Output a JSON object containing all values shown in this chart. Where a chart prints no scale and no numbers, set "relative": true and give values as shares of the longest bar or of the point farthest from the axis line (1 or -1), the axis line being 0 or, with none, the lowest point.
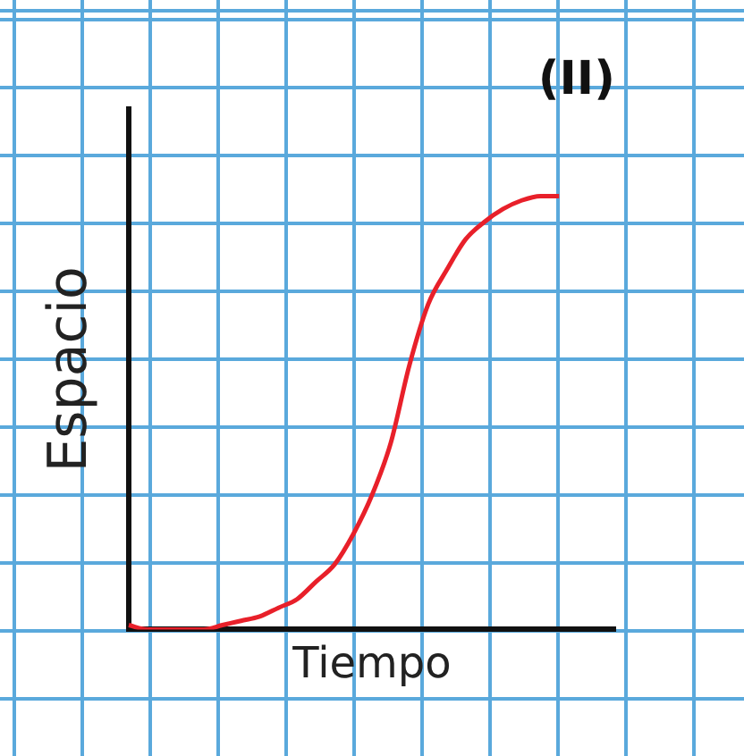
{
  "chart_data": {
    "type": "line",
    "title": "(II)",
    "xlabel": "Tiempo",
    "ylabel": "Espacio",
    "relative": true,
    "categories": [
      null,
      null,
      null,
      null,
      null,
      null,
      null,
      null,
      null,
      null,
      null,
      null,
      null,
      null,
      null,
      null,
      null,
      null,
      null,
      null,
      null,
      null,
      null,
      null,
      null,
      null,
      null
    ],
    "series": [
      {
        "color": "#e8202a",
        "values": [
          0.01,
          0,
          0,
          0,
          0,
          0.01,
          0.02,
          0.03,
          0.05,
          0.07,
          0.11,
          0.15,
          0.22,
          0.31,
          0.43,
          0.61,
          0.75,
          0.83,
          0.9,
          0.94,
          0.97,
          0.99,
          1,
          1,
          null,
          null,
          null
        ]
      }
    ],
    "legend": false,
    "marker": "none",
    "line_style": "solid"
  }
}
